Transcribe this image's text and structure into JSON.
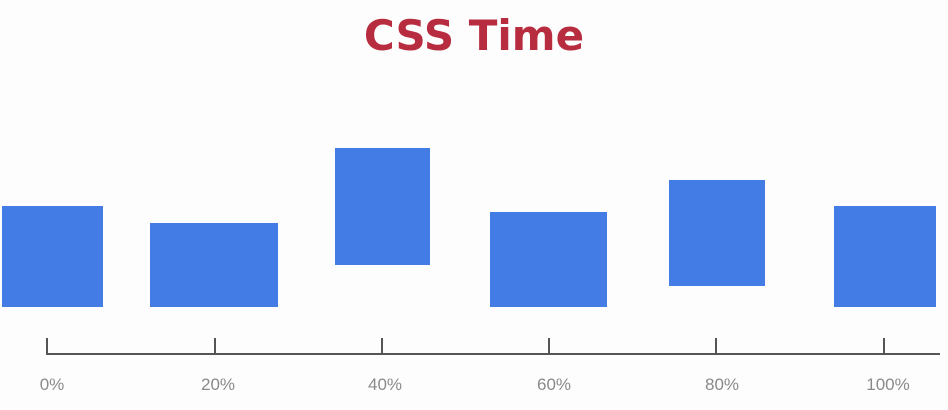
{
  "title": "CSS Time",
  "colors": {
    "title": "#b82c3f",
    "box": "#447ce6",
    "axis": "#555555",
    "tick_label": "#8a8a8a",
    "background": "#fdfdfd"
  },
  "timeline": {
    "ticks": [
      "0%",
      "20%",
      "40%",
      "60%",
      "80%",
      "100%"
    ]
  }
}
